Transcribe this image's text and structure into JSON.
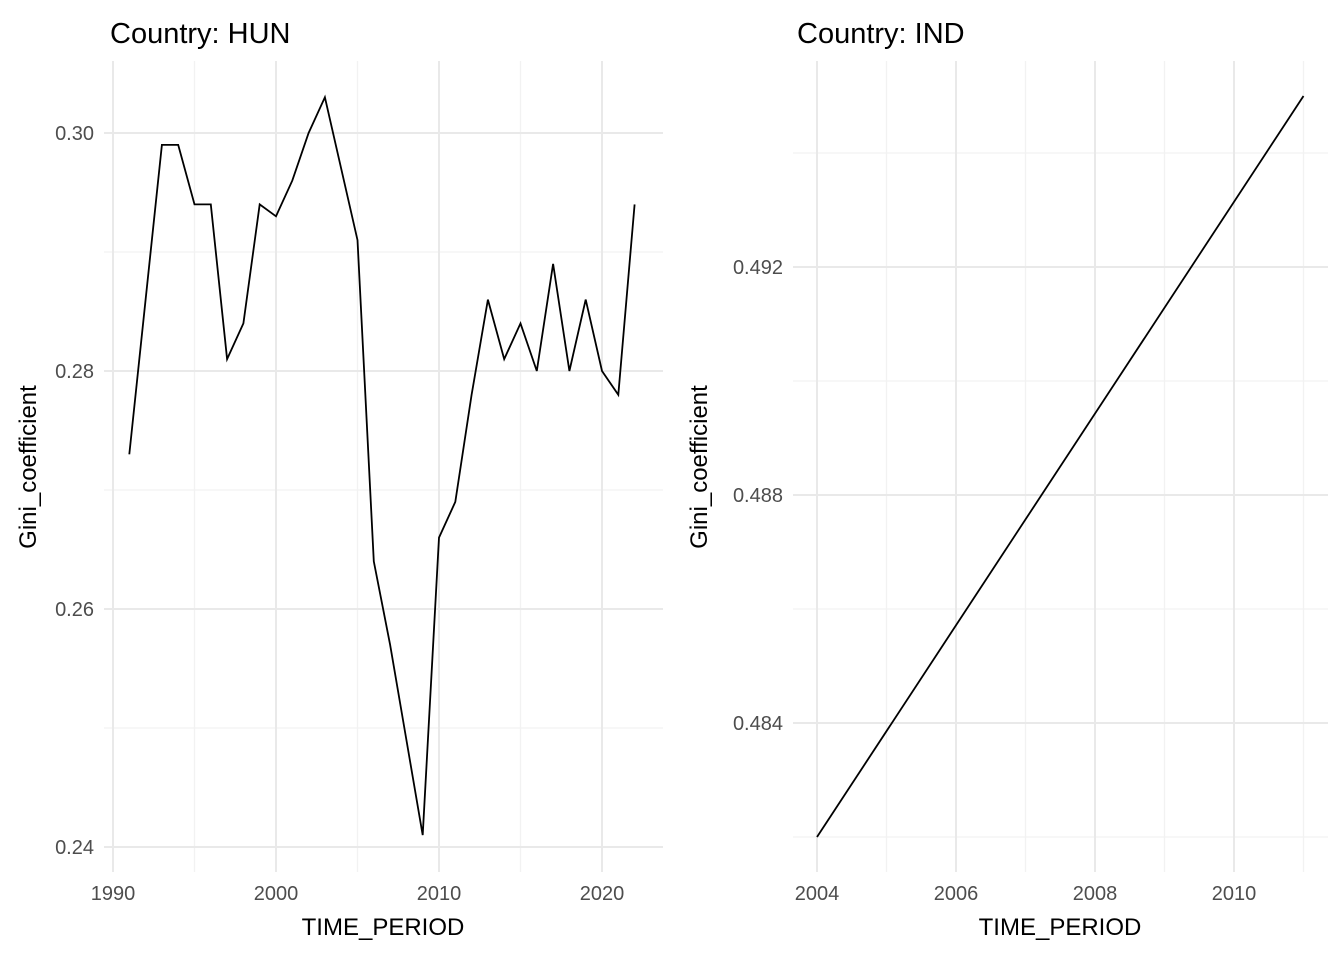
{
  "figure_background": "#ffffff",
  "styles": {
    "line_color": "#000000",
    "major_gridline_color": "#e9e9e9",
    "minor_gridline_color": "#f2f2f2",
    "tick_label_color": "#4d4d4d",
    "text_color": "#000000"
  },
  "chart_data": [
    {
      "type": "line",
      "title": "Country: HUN",
      "xlabel": "TIME_PERIOD",
      "ylabel": "Gini_coefficient",
      "legend": "none",
      "grid": true,
      "x": [
        1991,
        1992,
        1993,
        1994,
        1995,
        1996,
        1997,
        1998,
        1999,
        2000,
        2001,
        2002,
        2003,
        2004,
        2005,
        2006,
        2007,
        2008,
        2009,
        2010,
        2011,
        2012,
        2013,
        2014,
        2015,
        2016,
        2017,
        2018,
        2019,
        2020,
        2021,
        2022
      ],
      "values": [
        0.273,
        0.286,
        0.299,
        0.299,
        0.294,
        0.294,
        0.281,
        0.284,
        0.294,
        0.293,
        0.296,
        0.3,
        0.303,
        0.297,
        0.291,
        0.264,
        0.257,
        0.249,
        0.241,
        0.266,
        0.269,
        0.278,
        0.286,
        0.281,
        0.284,
        0.28,
        0.289,
        0.28,
        0.286,
        0.28,
        0.278,
        0.294
      ],
      "xlim": [
        1989.45,
        2023.55
      ],
      "ylim": [
        0.2379,
        0.3061
      ],
      "x_tick_values": [
        1990,
        2000,
        2010,
        2020
      ],
      "x_tick_labels": [
        "1990",
        "2000",
        "2010",
        "2020"
      ],
      "x_minor_values": [
        1995,
        2005,
        2015
      ],
      "y_tick_values": [
        0.24,
        0.26,
        0.28,
        0.3
      ],
      "y_tick_labels": [
        "0.24",
        "0.26",
        "0.28",
        "0.30"
      ],
      "y_minor_values": [
        0.25,
        0.27,
        0.29
      ]
    },
    {
      "type": "line",
      "title": "Country: IND",
      "xlabel": "TIME_PERIOD",
      "ylabel": "Gini_coefficient",
      "legend": "none",
      "grid": true,
      "x": [
        2004,
        2011
      ],
      "values": [
        0.482,
        0.495
      ],
      "xlim": [
        2003.65,
        2011.35
      ],
      "ylim": [
        0.4814,
        0.4956
      ],
      "x_tick_values": [
        2004,
        2006,
        2008,
        2010
      ],
      "x_tick_labels": [
        "2004",
        "2006",
        "2008",
        "2010"
      ],
      "x_minor_values": [
        2005,
        2007,
        2009,
        2011
      ],
      "y_tick_values": [
        0.484,
        0.488,
        0.492
      ],
      "y_tick_labels": [
        "0.484",
        "0.488",
        "0.492"
      ],
      "y_minor_values": [
        0.482,
        0.486,
        0.49,
        0.494
      ]
    }
  ]
}
